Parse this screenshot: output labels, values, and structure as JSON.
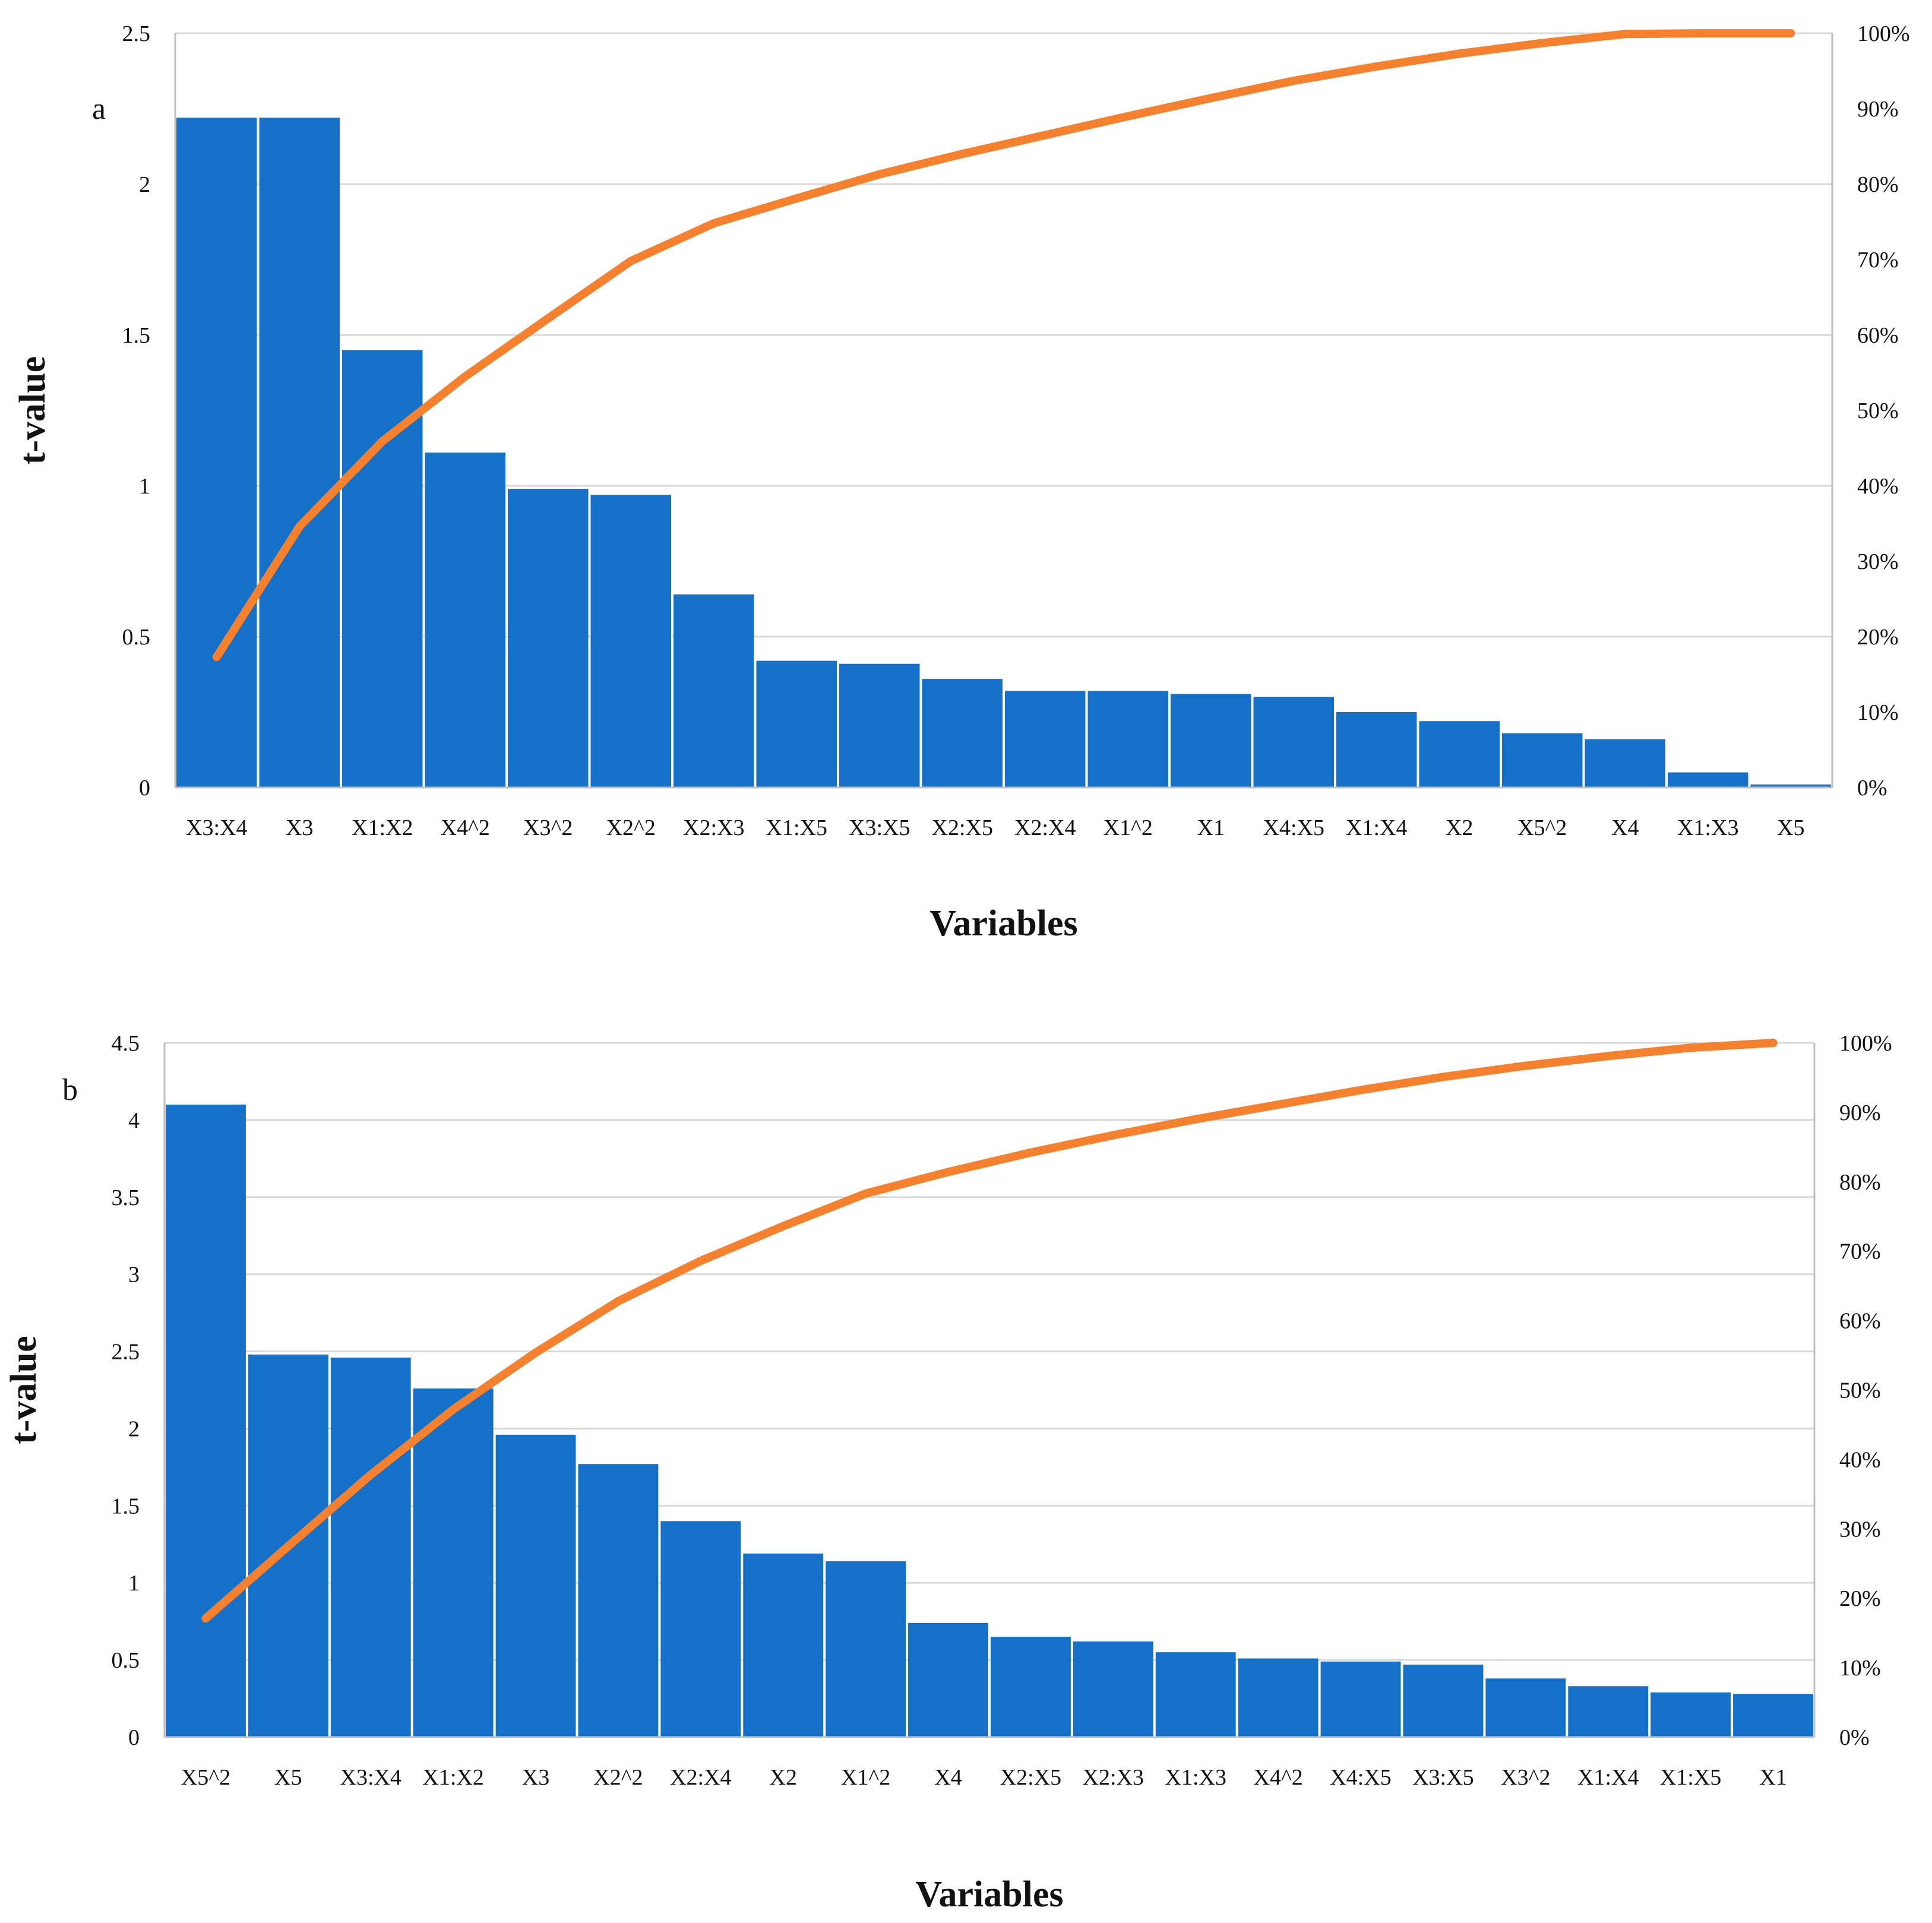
{
  "colors": {
    "bar": "#1570C8",
    "line": "#F5812E",
    "grid": "#D9D9D9",
    "axis": "#BFBFBF"
  },
  "chart_data": [
    {
      "type": "bar",
      "panel_label": "a",
      "title": "",
      "xlabel": "Variables",
      "ylabel": "t-value",
      "ylim": [
        0,
        2.5
      ],
      "y_ticks": [
        "0",
        "0.5",
        "1",
        "1.5",
        "2",
        "2.5"
      ],
      "y2lim": [
        0,
        100
      ],
      "y2_ticks": [
        "0%",
        "10%",
        "20%",
        "30%",
        "40%",
        "50%",
        "60%",
        "70%",
        "80%",
        "90%",
        "100%"
      ],
      "grid": true,
      "categories": [
        "X3:X4",
        "X3",
        "X1:X2",
        "X4^2",
        "X3^2",
        "X2^2",
        "X2:X3",
        "X1:X5",
        "X3:X5",
        "X2:X5",
        "X2:X4",
        "X1^2",
        "X1",
        "X4:X5",
        "X1:X4",
        "X2",
        "X5^2",
        "X4",
        "X1:X3",
        "X5"
      ],
      "series": [
        {
          "name": "t-value",
          "type": "bar",
          "axis": "left",
          "values": [
            2.22,
            2.22,
            1.45,
            1.11,
            0.99,
            0.97,
            0.64,
            0.42,
            0.41,
            0.36,
            0.32,
            0.32,
            0.31,
            0.3,
            0.25,
            0.22,
            0.18,
            0.16,
            0.05,
            0.01
          ]
        },
        {
          "name": "cumulative %",
          "type": "line",
          "axis": "right",
          "values": [
            17.3,
            34.6,
            45.9,
            54.5,
            62.2,
            69.8,
            74.8,
            78.1,
            81.3,
            84.0,
            86.5,
            89.0,
            91.4,
            93.7,
            95.6,
            97.3,
            98.7,
            99.9,
            100.0,
            100.0
          ]
        }
      ]
    },
    {
      "type": "bar",
      "panel_label": "b",
      "title": "",
      "xlabel": "Variables",
      "ylabel": "t-value",
      "ylim": [
        0,
        4.5
      ],
      "y_ticks": [
        "0",
        "0.5",
        "1",
        "1.5",
        "2",
        "2.5",
        "3",
        "3.5",
        "4",
        "4.5"
      ],
      "y2lim": [
        0,
        100
      ],
      "y2_ticks": [
        "0%",
        "10%",
        "20%",
        "30%",
        "40%",
        "50%",
        "60%",
        "70%",
        "80%",
        "90%",
        "100%"
      ],
      "grid": true,
      "categories": [
        "X5^2",
        "X5",
        "X3:X4",
        "X1:X2",
        "X3",
        "X2^2",
        "X2:X4",
        "X2",
        "X1^2",
        "X4",
        "X2:X5",
        "X2:X3",
        "X1:X3",
        "X4^2",
        "X4:X5",
        "X3:X5",
        "X3^2",
        "X1:X4",
        "X1:X5",
        "X1"
      ],
      "series": [
        {
          "name": "t-value",
          "type": "bar",
          "axis": "left",
          "values": [
            4.1,
            2.48,
            2.46,
            2.26,
            1.96,
            1.77,
            1.4,
            1.19,
            1.14,
            0.74,
            0.65,
            0.62,
            0.55,
            0.51,
            0.49,
            0.47,
            0.38,
            0.33,
            0.29,
            0.28
          ]
        },
        {
          "name": "cumulative %",
          "type": "line",
          "axis": "right",
          "values": [
            17.1,
            27.5,
            37.8,
            47.2,
            55.4,
            62.8,
            68.6,
            73.6,
            78.3,
            81.4,
            84.2,
            86.7,
            89.0,
            91.1,
            93.2,
            95.1,
            96.7,
            98.1,
            99.3,
            100.0
          ]
        }
      ]
    }
  ]
}
